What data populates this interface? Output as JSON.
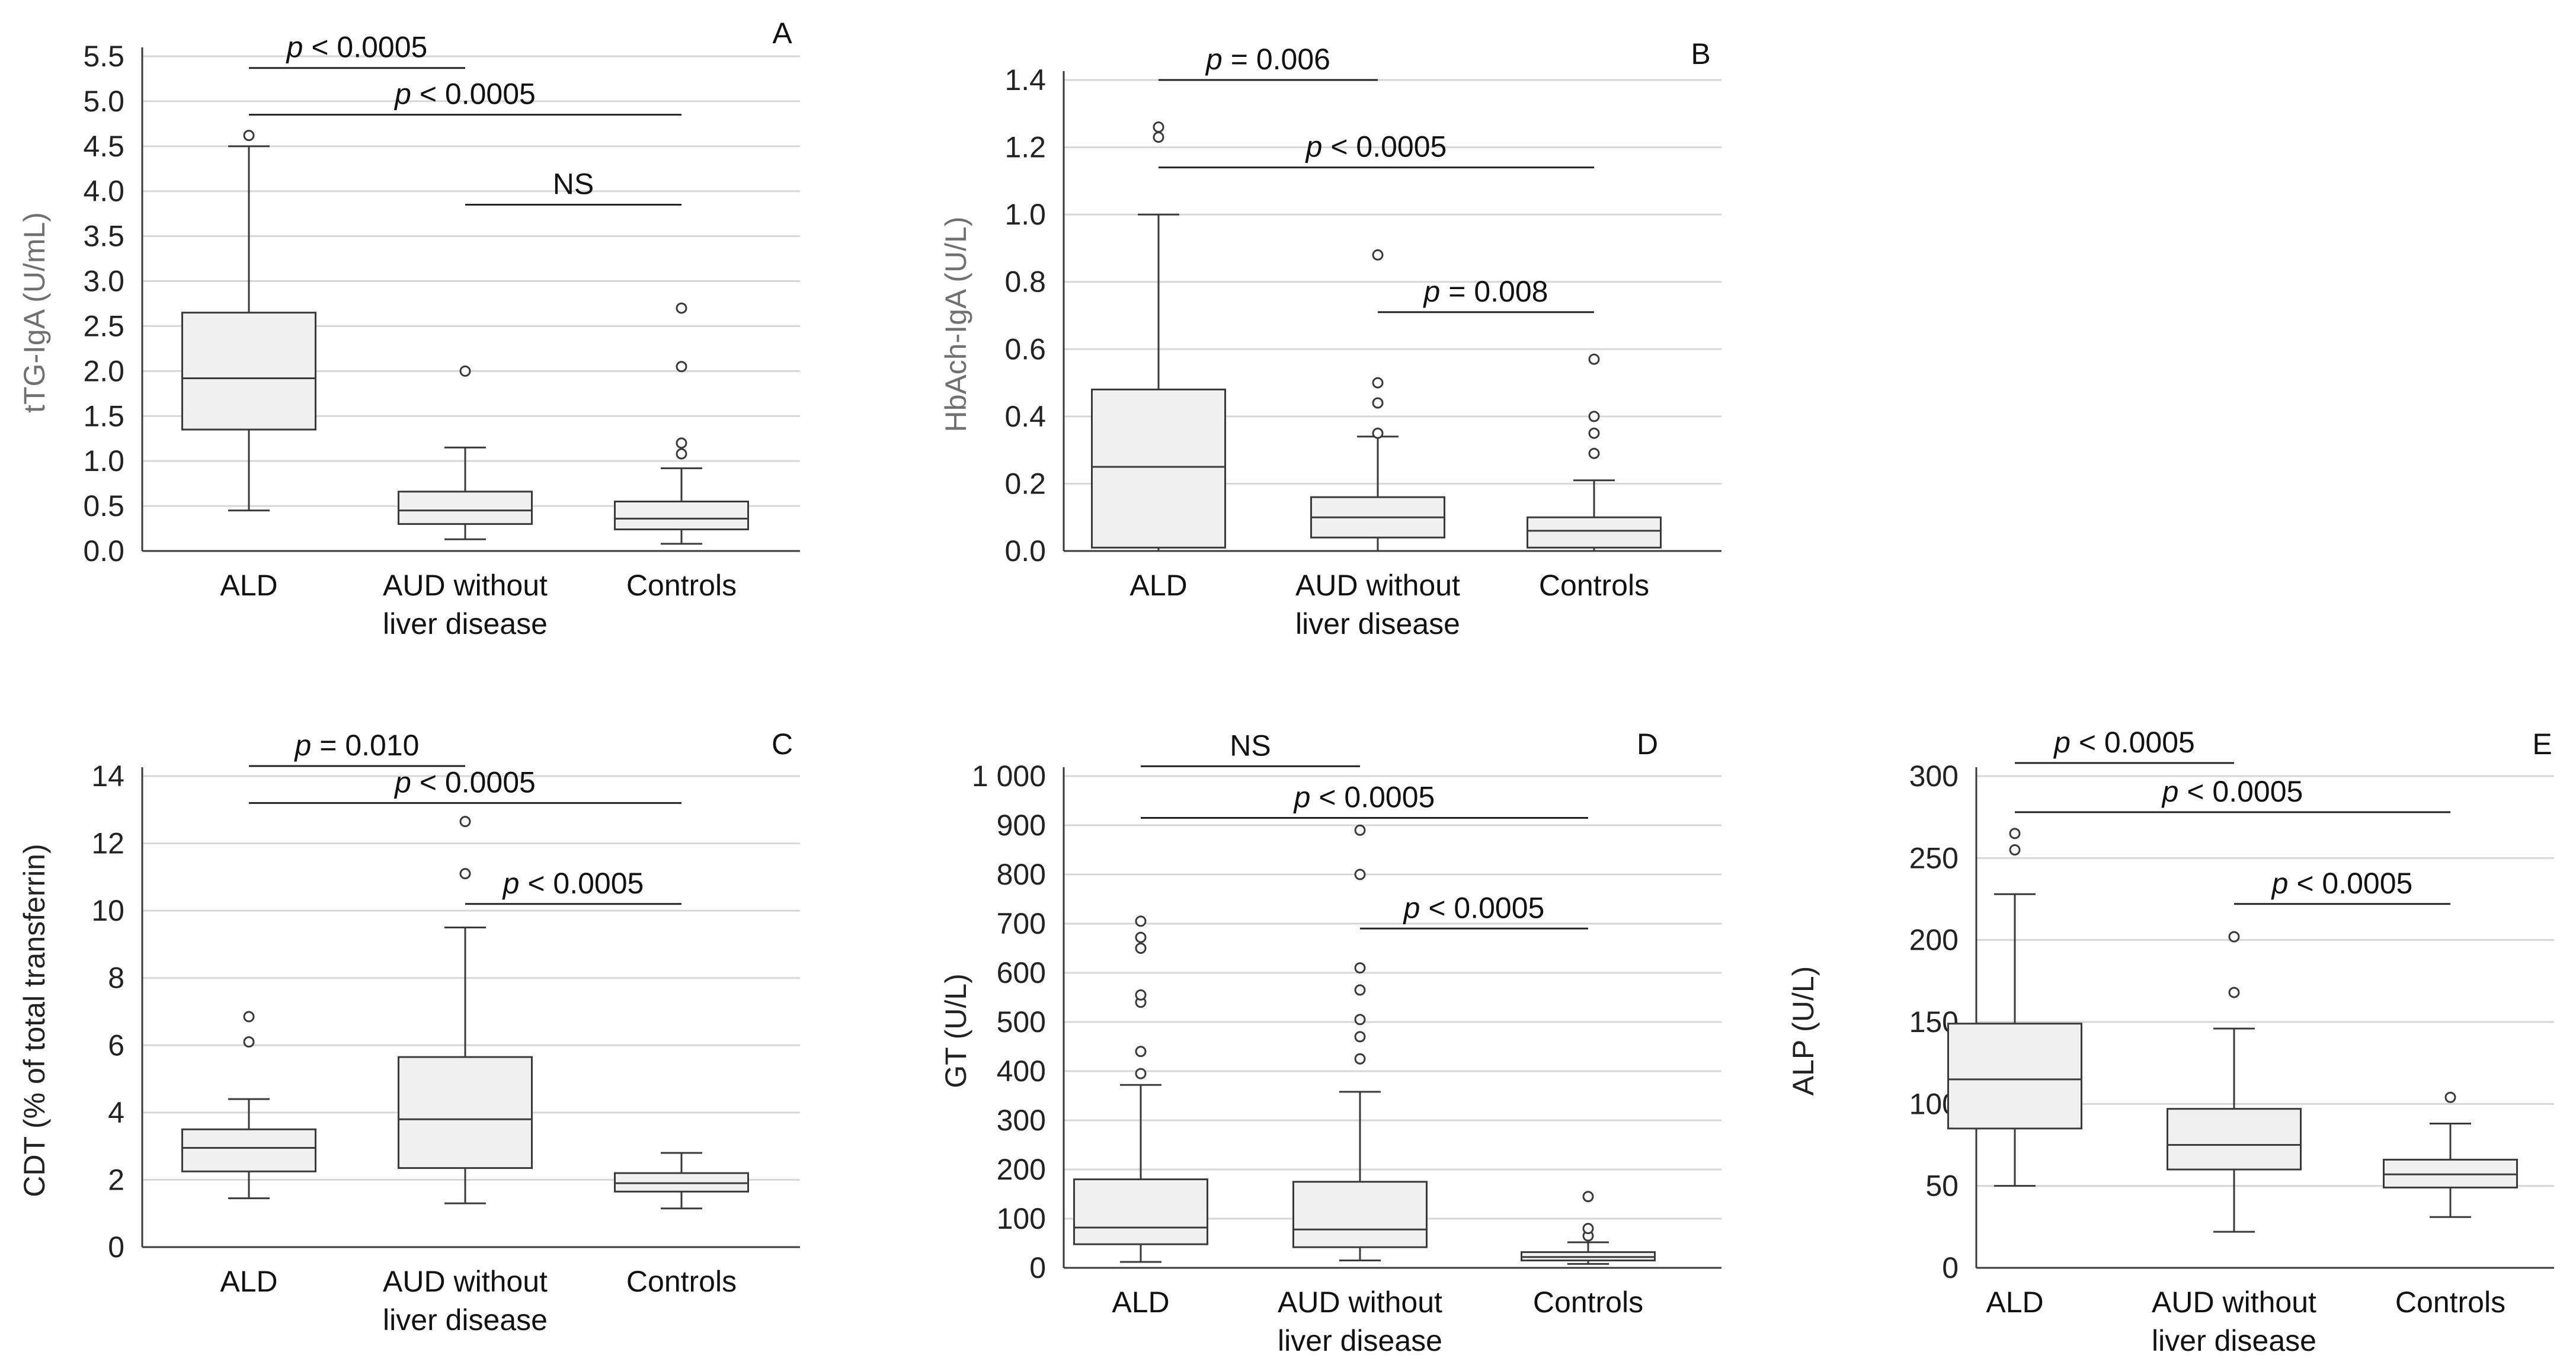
{
  "chart_data": [
    {
      "type": "box",
      "panel": "A",
      "ylabel": "tTG-IgA (U/mL)",
      "xlabel": "",
      "ylim": [
        0,
        5.5
      ],
      "yticks": [
        "0.0",
        "0.5",
        "1.0",
        "1.5",
        "2.0",
        "2.5",
        "3.0",
        "3.5",
        "4.0",
        "4.5",
        "5.0",
        "5.5"
      ],
      "categories": [
        "ALD",
        "AUD without liver disease",
        "Controls"
      ],
      "category_lines": [
        [
          "ALD"
        ],
        [
          "AUD without",
          "liver disease"
        ],
        [
          "Controls"
        ]
      ],
      "grid": true,
      "boxes": [
        {
          "min": 0.45,
          "q1": 1.35,
          "median": 1.92,
          "q3": 2.65,
          "max": 4.5,
          "outliers": [
            4.62
          ]
        },
        {
          "min": 0.13,
          "q1": 0.3,
          "median": 0.45,
          "q3": 0.66,
          "max": 1.15,
          "outliers": [
            2.0
          ]
        },
        {
          "min": 0.08,
          "q1": 0.24,
          "median": 0.36,
          "q3": 0.55,
          "max": 0.92,
          "outliers": [
            1.08,
            1.2,
            2.05,
            2.7
          ]
        }
      ],
      "comparisons": [
        {
          "from": 0,
          "to": 1,
          "y": 5.37,
          "label_italic": "p",
          "label_rest": " < 0.0005"
        },
        {
          "from": 0,
          "to": 2,
          "y": 4.85,
          "label_italic": "p",
          "label_rest": " < 0.0005"
        },
        {
          "from": 1,
          "to": 2,
          "y": 3.85,
          "label_italic": "",
          "label_rest": "NS"
        }
      ]
    },
    {
      "type": "box",
      "panel": "B",
      "ylabel": "HbAch-IgA (U/L)",
      "xlabel": "",
      "ylim": [
        0,
        1.4
      ],
      "yticks": [
        "0.0",
        "0.2",
        "0.4",
        "0.6",
        "0.8",
        "1.0",
        "1.2",
        "1.4"
      ],
      "categories": [
        "ALD",
        "AUD without liver disease",
        "Controls"
      ],
      "category_lines": [
        [
          "ALD"
        ],
        [
          "AUD without",
          "liver disease"
        ],
        [
          "Controls"
        ]
      ],
      "grid": true,
      "boxes": [
        {
          "min": 0.0,
          "q1": 0.01,
          "median": 0.25,
          "q3": 0.48,
          "max": 1.0,
          "outliers": [
            1.23,
            1.26
          ]
        },
        {
          "min": 0.0,
          "q1": 0.04,
          "median": 0.1,
          "q3": 0.16,
          "max": 0.34,
          "outliers": [
            0.35,
            0.44,
            0.5,
            0.88
          ]
        },
        {
          "min": 0.0,
          "q1": 0.01,
          "median": 0.06,
          "q3": 0.1,
          "max": 0.21,
          "outliers": [
            0.29,
            0.35,
            0.4,
            0.57
          ]
        }
      ],
      "comparisons": [
        {
          "from": 0,
          "to": 1,
          "y": 1.4,
          "label_italic": "p",
          "label_rest": " = 0.006"
        },
        {
          "from": 0,
          "to": 2,
          "y": 1.14,
          "label_italic": "p",
          "label_rest": " < 0.0005"
        },
        {
          "from": 1,
          "to": 2,
          "y": 0.71,
          "label_italic": "p",
          "label_rest": " = 0.008"
        }
      ]
    },
    {
      "type": "box",
      "panel": "C",
      "ylabel": "CDT (% of total transferrin)",
      "xlabel": "",
      "ylim": [
        0,
        14
      ],
      "yticks": [
        "0",
        "2",
        "4",
        "6",
        "8",
        "10",
        "12",
        "14"
      ],
      "categories": [
        "ALD",
        "AUD without liver disease",
        "Controls"
      ],
      "category_lines": [
        [
          "ALD"
        ],
        [
          "AUD without",
          "liver disease"
        ],
        [
          "Controls"
        ]
      ],
      "grid": true,
      "boxes": [
        {
          "min": 1.45,
          "q1": 2.25,
          "median": 2.95,
          "q3": 3.5,
          "max": 4.4,
          "outliers": [
            6.1,
            6.85
          ]
        },
        {
          "min": 1.3,
          "q1": 2.35,
          "median": 3.8,
          "q3": 5.65,
          "max": 9.5,
          "outliers": [
            11.1,
            12.65
          ]
        },
        {
          "min": 1.15,
          "q1": 1.65,
          "median": 1.9,
          "q3": 2.2,
          "max": 2.8,
          "outliers": []
        }
      ],
      "comparisons": [
        {
          "from": 0,
          "to": 1,
          "y": 14.3,
          "label_italic": "p",
          "label_rest": " = 0.010"
        },
        {
          "from": 0,
          "to": 2,
          "y": 13.2,
          "label_italic": "p",
          "label_rest": " < 0.0005"
        },
        {
          "from": 1,
          "to": 2,
          "y": 10.2,
          "label_italic": "p",
          "label_rest": " < 0.0005"
        }
      ]
    },
    {
      "type": "box",
      "panel": "D",
      "ylabel": "GT (U/L)",
      "xlabel": "",
      "ylim": [
        0,
        1000
      ],
      "yticks": [
        "0",
        "100",
        "200",
        "300",
        "400",
        "500",
        "600",
        "700",
        "800",
        "900",
        "1 000"
      ],
      "categories": [
        "ALD",
        "AUD without liver disease",
        "Controls"
      ],
      "category_lines": [
        [
          "ALD"
        ],
        [
          "AUD without",
          "liver disease"
        ],
        [
          "Controls"
        ]
      ],
      "grid": true,
      "boxes": [
        {
          "min": 12,
          "q1": 48,
          "median": 82,
          "q3": 180,
          "max": 372,
          "outliers": [
            395,
            440,
            540,
            555,
            650,
            672,
            705
          ]
        },
        {
          "min": 15,
          "q1": 42,
          "median": 78,
          "q3": 175,
          "max": 358,
          "outliers": [
            425,
            470,
            505,
            565,
            610,
            800,
            890
          ]
        },
        {
          "min": 8,
          "q1": 15,
          "median": 22,
          "q3": 32,
          "max": 52,
          "outliers": [
            65,
            80,
            145
          ]
        }
      ],
      "comparisons": [
        {
          "from": 0,
          "to": 1,
          "y": 1020,
          "label_italic": "",
          "label_rest": "NS"
        },
        {
          "from": 0,
          "to": 2,
          "y": 915,
          "label_italic": "p",
          "label_rest": " < 0.0005"
        },
        {
          "from": 1,
          "to": 2,
          "y": 690,
          "label_italic": "p",
          "label_rest": " < 0.0005"
        }
      ]
    },
    {
      "type": "box",
      "panel": "E",
      "ylabel": "ALP (U/L)",
      "xlabel": "",
      "ylim": [
        0,
        300
      ],
      "yticks": [
        "0",
        "50",
        "100",
        "150",
        "200",
        "250",
        "300"
      ],
      "categories": [
        "ALD",
        "AUD without liver disease",
        "Controls"
      ],
      "category_lines": [
        [
          "ALD"
        ],
        [
          "AUD without",
          "liver disease"
        ],
        [
          "Controls"
        ]
      ],
      "grid": true,
      "boxes": [
        {
          "min": 50,
          "q1": 85,
          "median": 115,
          "q3": 149,
          "max": 228,
          "outliers": [
            255,
            265
          ]
        },
        {
          "min": 22,
          "q1": 60,
          "median": 75,
          "q3": 97,
          "max": 146,
          "outliers": [
            168,
            202
          ]
        },
        {
          "min": 31,
          "q1": 49,
          "median": 57,
          "q3": 66,
          "max": 88,
          "outliers": [
            104
          ]
        }
      ],
      "comparisons": [
        {
          "from": 0,
          "to": 1,
          "y": 308,
          "label_italic": "p",
          "label_rest": " < 0.0005"
        },
        {
          "from": 0,
          "to": 2,
          "y": 278,
          "label_italic": "p",
          "label_rest": " < 0.0005"
        },
        {
          "from": 1,
          "to": 2,
          "y": 222,
          "label_italic": "p",
          "label_rest": " < 0.0005"
        }
      ]
    }
  ]
}
